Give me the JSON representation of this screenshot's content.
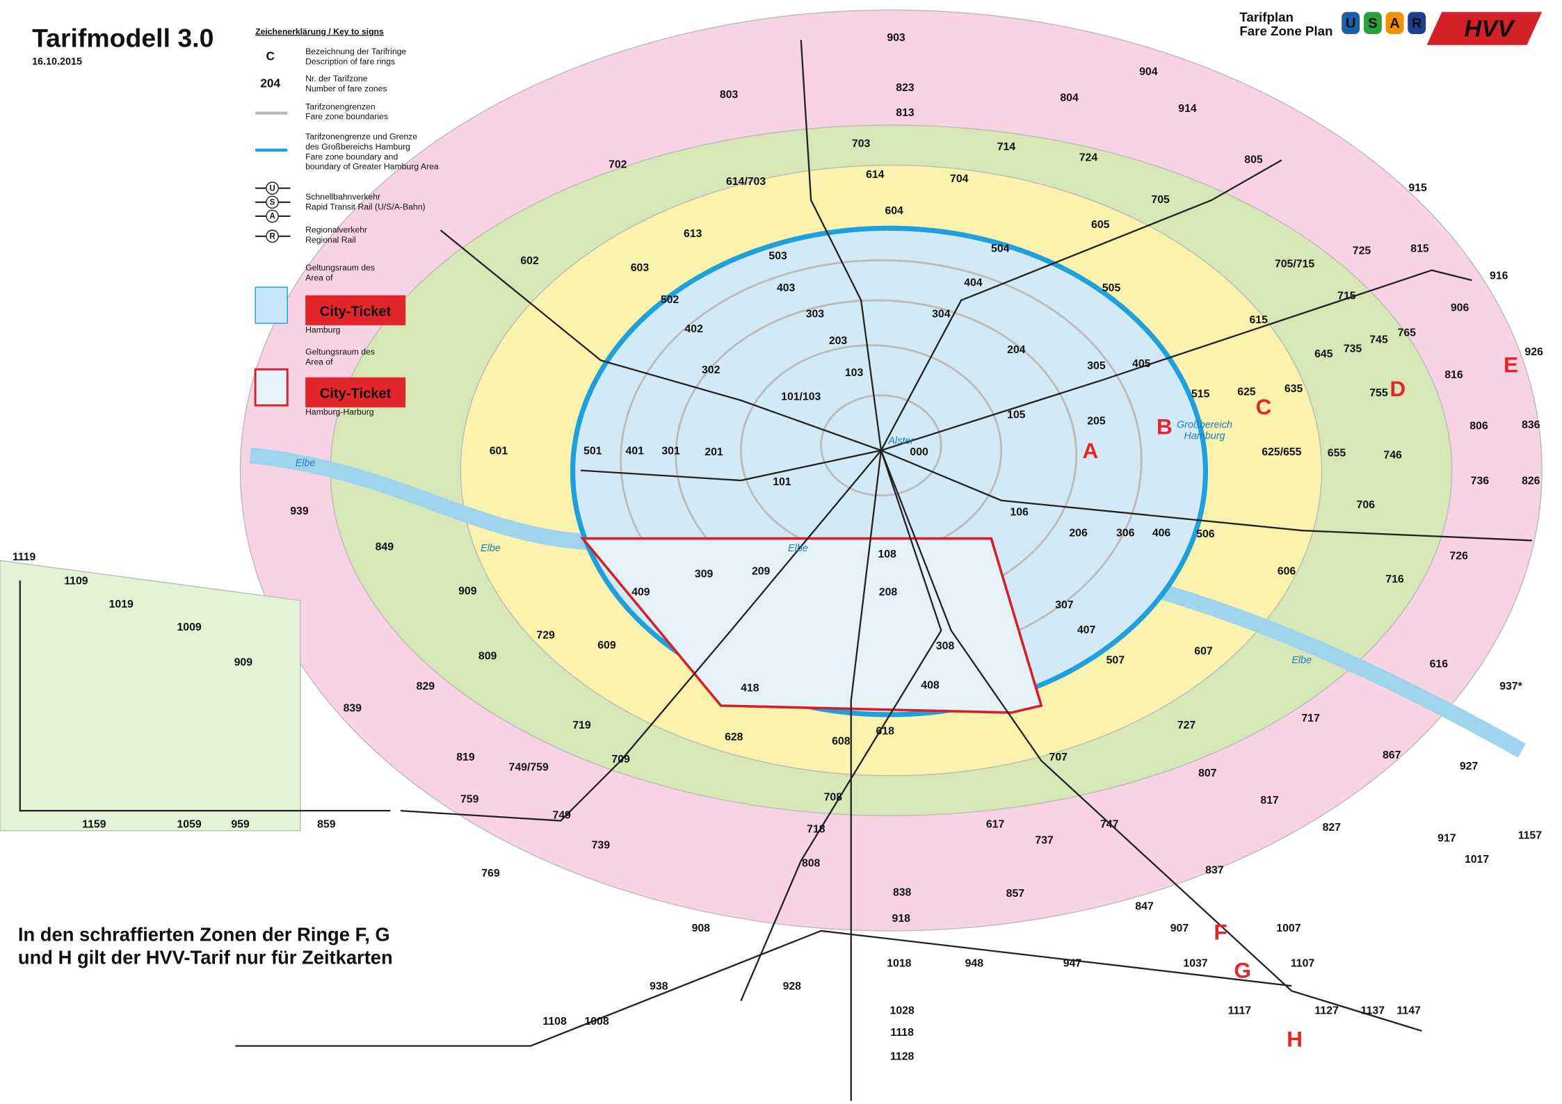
{
  "header": {
    "title": "Tarifmodell 3.0",
    "date": "16.10.2015"
  },
  "logo": {
    "line1": "Tarifplan",
    "line2": "Fare Zone Plan",
    "modes": [
      "U",
      "S",
      "A",
      "R"
    ],
    "brand": "HVV"
  },
  "legend": {
    "heading": "Zeichenerklärung / Key to signs",
    "symbol_fare_ring": "C",
    "symbol_zone": "204",
    "items": [
      [
        "Bezeichnung der Tarifringe",
        "Description of fare rings"
      ],
      [
        "Nr. der Tarifzone",
        "Number of fare zones"
      ],
      [
        "Tarifzonengrenzen",
        "Fare zone boundaries"
      ],
      [
        "Tarifzonengrenze und Grenze",
        "des Großbereichs Hamburg",
        "Fare zone boundary and",
        "boundary of Greater Hamburg Area"
      ],
      [
        "Schnellbahnverkehr",
        "Rapid Transit Rail (U/S/A-Bahn)"
      ],
      [
        "Regionalverkehr",
        "Regional Rail"
      ],
      [
        "Geltungsraum des",
        "Area of"
      ],
      [
        "Geltungsraum des",
        "Area of"
      ]
    ],
    "rail_symbols": [
      "U",
      "S",
      "A",
      "R"
    ],
    "ticket": [
      "City-Ticket",
      "City-Ticket"
    ],
    "ticket_area": [
      "Hamburg",
      "Hamburg-Harburg"
    ]
  },
  "rings": [
    "A",
    "B",
    "C",
    "D",
    "E",
    "F",
    "G",
    "H"
  ],
  "places": [
    "Elbe",
    "Elbe",
    "Elbe",
    "Elbe",
    "Alster",
    "Großbereich",
    "Hamburg"
  ],
  "zones": [
    "000",
    "101",
    "103",
    "101/103",
    "105",
    "106",
    "108",
    "201",
    "203",
    "204",
    "205",
    "206",
    "208",
    "209",
    "301",
    "302",
    "303",
    "304",
    "305",
    "306",
    "307",
    "308",
    "309",
    "401",
    "402",
    "403",
    "404",
    "405",
    "406",
    "407",
    "408",
    "409",
    "418",
    "501",
    "502",
    "503",
    "504",
    "505",
    "506",
    "507",
    "515",
    "601",
    "602",
    "603",
    "604",
    "605",
    "606",
    "607",
    "608",
    "609",
    "613",
    "614",
    "614/703",
    "615",
    "616",
    "617",
    "618",
    "625",
    "625/655",
    "628",
    "635",
    "645",
    "655",
    "702",
    "703",
    "704",
    "705",
    "705/715",
    "706",
    "707",
    "708",
    "709",
    "714",
    "715",
    "716",
    "717",
    "718",
    "719",
    "724",
    "725",
    "726",
    "727",
    "729",
    "735",
    "736",
    "737",
    "739",
    "745",
    "746",
    "747",
    "749",
    "749/759",
    "755",
    "759",
    "765",
    "769",
    "803",
    "804",
    "805",
    "806",
    "807",
    "808",
    "809",
    "813",
    "815",
    "816",
    "817",
    "819",
    "823",
    "826",
    "827",
    "829",
    "836",
    "837",
    "838",
    "839",
    "847",
    "849",
    "857",
    "859",
    "867",
    "903",
    "904",
    "906",
    "907",
    "908",
    "909",
    "909",
    "914",
    "915",
    "916",
    "917",
    "918",
    "926",
    "927",
    "928",
    "937*",
    "938",
    "939",
    "947",
    "948",
    "959",
    "1007",
    "1008",
    "1009",
    "1017",
    "1018",
    "1019",
    "1028",
    "1037",
    "1059",
    "1107",
    "1108",
    "1109",
    "1117",
    "1118",
    "1119",
    "1127",
    "1128",
    "1137",
    "1147",
    "1157",
    "1159"
  ],
  "note": [
    "In den schraffierten Zonen der Ringe F, G",
    "und H gilt der HVV-Tarif nur für Zeitkarten"
  ]
}
